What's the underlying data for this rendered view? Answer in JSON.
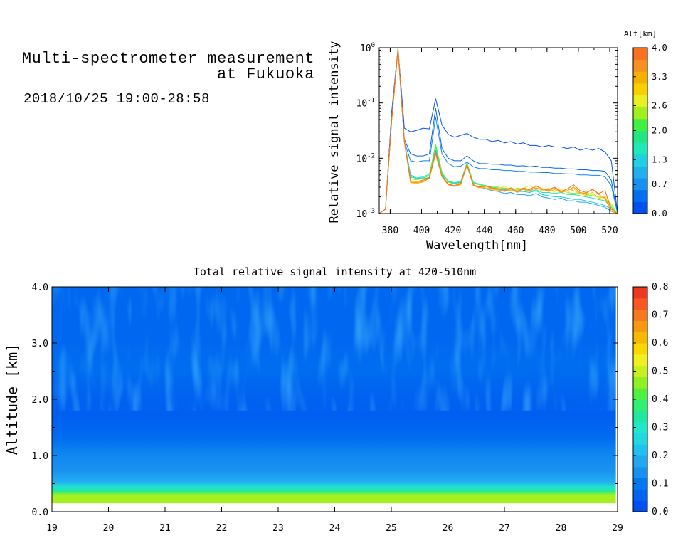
{
  "header": {
    "title_line1": "Multi-spectrometer measurement",
    "title_line2": "at Fukuoka",
    "time_range": "2018/10/25 19:00-28:58"
  },
  "chart_data": [
    {
      "type": "line",
      "xlabel": "Wavelength[nm]",
      "ylabel": "Relative signal intensity",
      "xlim": [
        373,
        525
      ],
      "ylim": [
        0.001,
        1
      ],
      "yscale": "log",
      "x_ticks": [
        "380",
        "400",
        "420",
        "440",
        "460",
        "480",
        "500",
        "520"
      ],
      "y_ticks": [
        "10^0",
        "10^-1",
        "10^-2",
        "10^-3"
      ],
      "colorbar": {
        "title": "Alt[km]",
        "ticks": [
          "4.0",
          "3.3",
          "2.6",
          "2.0",
          "1.3",
          "0.7",
          "0.0"
        ],
        "range": [
          0,
          4
        ],
        "colors": [
          "#0050f0",
          "#0070f0",
          "#1890f0",
          "#20b0f0",
          "#20d0e0",
          "#20e8b8",
          "#20e880",
          "#40f040",
          "#a0f020",
          "#e8f020",
          "#f8d000",
          "#f8b000",
          "#f89020",
          "#f87020"
        ]
      },
      "x": [
        373,
        377,
        381,
        385,
        389,
        393,
        397,
        401,
        405,
        409,
        413,
        417,
        421,
        425,
        429,
        433,
        437,
        441,
        445,
        449,
        453,
        457,
        461,
        465,
        469,
        473,
        477,
        481,
        485,
        489,
        493,
        497,
        501,
        505,
        509,
        513,
        517,
        521,
        525
      ],
      "series": [
        {
          "alt": 0.0,
          "values": [
            0.0008,
            0.0012,
            0.07,
            0.98,
            0.035,
            0.03,
            0.032,
            0.035,
            0.034,
            0.12,
            0.04,
            0.027,
            0.024,
            0.026,
            0.028,
            0.024,
            0.022,
            0.022,
            0.02,
            0.021,
            0.019,
            0.02,
            0.018,
            0.019,
            0.017,
            0.017,
            0.016,
            0.017,
            0.016,
            0.016,
            0.015,
            0.016,
            0.014,
            0.015,
            0.014,
            0.015,
            0.013,
            0.009,
            0.001
          ]
        },
        {
          "alt": 0.2,
          "values": [
            0.0008,
            0.0012,
            0.06,
            0.95,
            0.022,
            0.012,
            0.011,
            0.011,
            0.012,
            0.08,
            0.015,
            0.01,
            0.009,
            0.009,
            0.011,
            0.009,
            0.008,
            0.008,
            0.0078,
            0.0078,
            0.0075,
            0.0075,
            0.0072,
            0.0073,
            0.007,
            0.0072,
            0.0068,
            0.0068,
            0.0066,
            0.0066,
            0.0064,
            0.0064,
            0.0062,
            0.0062,
            0.006,
            0.006,
            0.0058,
            0.004,
            0.001
          ]
        },
        {
          "alt": 0.5,
          "values": [
            0.0008,
            0.0012,
            0.05,
            0.95,
            0.02,
            0.009,
            0.0085,
            0.009,
            0.009,
            0.055,
            0.012,
            0.008,
            0.007,
            0.0072,
            0.0085,
            0.007,
            0.0065,
            0.0065,
            0.0062,
            0.0062,
            0.006,
            0.006,
            0.0058,
            0.0058,
            0.0056,
            0.0056,
            0.0055,
            0.0055,
            0.0053,
            0.0053,
            0.0052,
            0.0052,
            0.005,
            0.005,
            0.0049,
            0.0049,
            0.0046,
            0.0032,
            0.001
          ]
        },
        {
          "alt": 0.8,
          "values": [
            0.0008,
            0.0012,
            0.05,
            0.95,
            0.02,
            0.005,
            0.0042,
            0.0042,
            0.0045,
            0.014,
            0.005,
            0.0034,
            0.0032,
            0.0034,
            0.0075,
            0.0033,
            0.003,
            0.0028,
            0.0026,
            0.0025,
            0.0023,
            0.0024,
            0.0022,
            0.0022,
            0.0021,
            0.0023,
            0.002,
            0.0019,
            0.0018,
            0.0019,
            0.0017,
            0.0017,
            0.0016,
            0.0016,
            0.0015,
            0.0014,
            0.0013,
            0.0011,
            0.0008
          ]
        },
        {
          "alt": 1.2,
          "values": [
            0.0008,
            0.0012,
            0.05,
            0.95,
            0.02,
            0.0046,
            0.0043,
            0.0044,
            0.0048,
            0.016,
            0.0052,
            0.0038,
            0.0035,
            0.0037,
            0.008,
            0.0036,
            0.0033,
            0.0031,
            0.003,
            0.0028,
            0.0027,
            0.0026,
            0.0025,
            0.0025,
            0.0024,
            0.0026,
            0.0022,
            0.0021,
            0.002,
            0.002,
            0.0019,
            0.0018,
            0.0018,
            0.0017,
            0.0016,
            0.0015,
            0.0014,
            0.0012,
            0.0008
          ]
        },
        {
          "alt": 1.6,
          "values": [
            0.0008,
            0.0012,
            0.05,
            0.95,
            0.02,
            0.0045,
            0.0044,
            0.0046,
            0.0051,
            0.017,
            0.0054,
            0.0039,
            0.0036,
            0.0038,
            0.0082,
            0.0037,
            0.0034,
            0.0032,
            0.003,
            0.0029,
            0.0029,
            0.0027,
            0.0026,
            0.0027,
            0.0025,
            0.0027,
            0.0024,
            0.0024,
            0.0023,
            0.0024,
            0.0022,
            0.0022,
            0.0021,
            0.002,
            0.0019,
            0.0018,
            0.0017,
            0.0013,
            0.0008
          ]
        },
        {
          "alt": 2.3,
          "values": [
            0.0008,
            0.0012,
            0.05,
            0.95,
            0.02,
            0.0042,
            0.0041,
            0.0043,
            0.0049,
            0.018,
            0.0056,
            0.0037,
            0.0034,
            0.0036,
            0.008,
            0.0035,
            0.0033,
            0.0031,
            0.003,
            0.003,
            0.0028,
            0.0029,
            0.0027,
            0.0028,
            0.0026,
            0.0029,
            0.0027,
            0.0026,
            0.0025,
            0.0027,
            0.0024,
            0.0023,
            0.0024,
            0.0022,
            0.0021,
            0.002,
            0.0019,
            0.0014,
            0.0008
          ]
        },
        {
          "alt": 2.8,
          "values": [
            0.0008,
            0.0012,
            0.05,
            0.95,
            0.02,
            0.0038,
            0.0037,
            0.0039,
            0.0044,
            0.013,
            0.0048,
            0.0034,
            0.0032,
            0.0034,
            0.0076,
            0.0033,
            0.003,
            0.0029,
            0.0028,
            0.0029,
            0.0031,
            0.0027,
            0.0026,
            0.0029,
            0.0032,
            0.0028,
            0.0026,
            0.0029,
            0.0025,
            0.0027,
            0.0024,
            0.0028,
            0.0023,
            0.0024,
            0.0022,
            0.002,
            0.0021,
            0.0015,
            0.0008
          ]
        },
        {
          "alt": 3.2,
          "values": [
            0.0008,
            0.0012,
            0.05,
            0.95,
            0.02,
            0.0036,
            0.0035,
            0.0037,
            0.0043,
            0.012,
            0.0046,
            0.0033,
            0.0031,
            0.0033,
            0.0074,
            0.0032,
            0.0031,
            0.0029,
            0.0027,
            0.0026,
            0.0028,
            0.0026,
            0.0029,
            0.0027,
            0.0025,
            0.0031,
            0.0028,
            0.0025,
            0.0027,
            0.0024,
            0.0028,
            0.0026,
            0.0023,
            0.0021,
            0.0024,
            0.0019,
            0.002,
            0.0012,
            0.0008
          ]
        },
        {
          "alt": 3.7,
          "values": [
            0.0008,
            0.0012,
            0.05,
            0.95,
            0.02,
            0.0037,
            0.0036,
            0.0038,
            0.0044,
            0.012,
            0.0046,
            0.0033,
            0.0031,
            0.0034,
            0.0075,
            0.0032,
            0.0029,
            0.0031,
            0.0028,
            0.0027,
            0.0025,
            0.0028,
            0.0024,
            0.0028,
            0.0026,
            0.0029,
            0.0027,
            0.0026,
            0.0029,
            0.0024,
            0.0026,
            0.003,
            0.0024,
            0.0023,
            0.0028,
            0.0022,
            0.0019,
            0.0011,
            0.0008
          ]
        },
        {
          "alt": 4.0,
          "values": [
            0.0008,
            0.0012,
            0.05,
            0.95,
            0.02,
            0.0039,
            0.0038,
            0.004,
            0.0045,
            0.013,
            0.0047,
            0.0034,
            0.0032,
            0.0035,
            0.0077,
            0.0033,
            0.003,
            0.0032,
            0.0029,
            0.0028,
            0.0026,
            0.0029,
            0.0025,
            0.0029,
            0.0027,
            0.0032,
            0.0028,
            0.0027,
            0.003,
            0.0025,
            0.0028,
            0.0033,
            0.0026,
            0.0024,
            0.0027,
            0.0023,
            0.0026,
            0.0012,
            0.0008
          ]
        }
      ]
    },
    {
      "type": "heatmap",
      "title": "Total relative signal intensity at 420-510nm",
      "xlabel": "",
      "ylabel": "Altitude [km]",
      "xlim": [
        19,
        29
      ],
      "ylim": [
        0,
        4
      ],
      "x_ticks": [
        "19",
        "20",
        "21",
        "22",
        "23",
        "24",
        "25",
        "26",
        "27",
        "28",
        "29"
      ],
      "y_ticks": [
        "0.0",
        "1.0",
        "2.0",
        "3.0",
        "4.0"
      ],
      "data_extent_x": [
        19,
        28.97
      ],
      "data_extent_y": [
        0.15,
        4.0
      ],
      "colorbar": {
        "ticks": [
          "0.8",
          "0.7",
          "0.6",
          "0.5",
          "0.4",
          "0.3",
          "0.2",
          "0.1",
          "0.0"
        ],
        "range": [
          0,
          0.8
        ],
        "colors": [
          "#0050f0",
          "#0064f0",
          "#0078f0",
          "#1890f0",
          "#20a8f0",
          "#20c0f0",
          "#20d8e0",
          "#20e8c8",
          "#20e8a0",
          "#30f070",
          "#50f040",
          "#90f020",
          "#c8f020",
          "#f0f020",
          "#f8d800",
          "#f8b800",
          "#f89810",
          "#f87820",
          "#f85820",
          "#f03820"
        ]
      },
      "altitude_profile": [
        {
          "alt": 0.15,
          "value": 0.48
        },
        {
          "alt": 0.22,
          "value": 0.35
        },
        {
          "alt": 0.3,
          "value": 0.28
        },
        {
          "alt": 0.4,
          "value": 0.18
        },
        {
          "alt": 0.6,
          "value": 0.13
        },
        {
          "alt": 0.9,
          "value": 0.11
        },
        {
          "alt": 1.2,
          "value": 0.06
        },
        {
          "alt": 1.6,
          "value": 0.03
        },
        {
          "alt": 2.0,
          "value": 0.04
        },
        {
          "alt": 2.5,
          "value": 0.06
        },
        {
          "alt": 3.0,
          "value": 0.05
        },
        {
          "alt": 3.5,
          "value": 0.05
        },
        {
          "alt": 4.0,
          "value": 0.05
        }
      ]
    }
  ]
}
